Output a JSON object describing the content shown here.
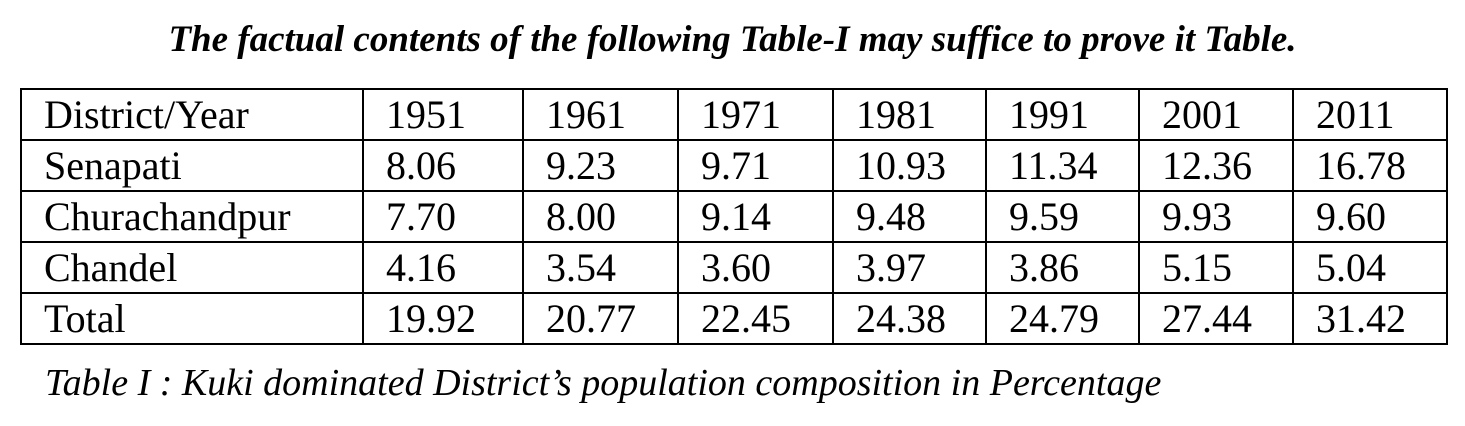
{
  "title": "The factual contents of the following Table-I may suffice to prove it Table.",
  "table": {
    "header": [
      "District/Year",
      "1951",
      "1961",
      "1971",
      "1981",
      "1991",
      "2001",
      "2011"
    ],
    "rows": [
      [
        "Senapati",
        "8.06",
        "9.23",
        "9.71",
        "10.93",
        "11.34",
        "12.36",
        "16.78"
      ],
      [
        "Churachandpur",
        "7.70",
        "8.00",
        "9.14",
        "9.48",
        "9.59",
        "9.93",
        "9.60"
      ],
      [
        "Chandel",
        "4.16",
        "3.54",
        "3.60",
        "3.97",
        "3.86",
        "5.15",
        "5.04"
      ],
      [
        "Total",
        "19.92",
        "20.77",
        "22.45",
        "24.38",
        "24.79",
        "27.44",
        "31.42"
      ]
    ]
  },
  "caption": "Table I : Kuki dominated District’s population composition in Percentage"
}
